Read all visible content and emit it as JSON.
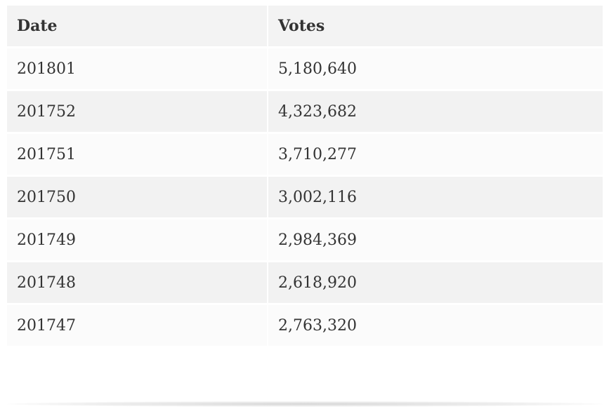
{
  "table": {
    "headers": {
      "date": "Date",
      "votes": "Votes"
    },
    "rows": [
      {
        "date": "201801",
        "votes": "5,180,640"
      },
      {
        "date": "201752",
        "votes": "4,323,682"
      },
      {
        "date": "201751",
        "votes": "3,710,277"
      },
      {
        "date": "201750",
        "votes": "3,002,116"
      },
      {
        "date": "201749",
        "votes": "2,984,369"
      },
      {
        "date": "201748",
        "votes": "2,618,920"
      },
      {
        "date": "201747",
        "votes": "2,763,320"
      }
    ]
  },
  "colors": {
    "text": "#333333",
    "header_bg": "#f3f3f3",
    "row_odd_bg": "#fbfbfb",
    "row_even_bg": "#f2f2f2"
  }
}
